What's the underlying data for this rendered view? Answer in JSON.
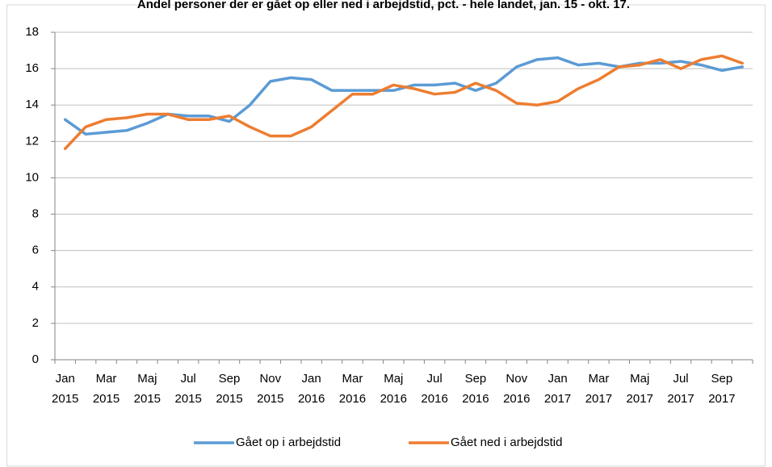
{
  "chart_data": {
    "type": "line",
    "title": "Andel personer der er gået op eller ned i arbejdstid, pct. - hele landet, jan. 15 - okt. 17.",
    "categories": [
      "Jan 2015",
      null,
      "Mar 2015",
      null,
      "Maj 2015",
      null,
      "Jul 2015",
      null,
      "Sep 2015",
      null,
      "Nov 2015",
      null,
      "Jan 2016",
      null,
      "Mar 2016",
      null,
      "Maj 2016",
      null,
      "Jul 2016",
      null,
      "Sep 2016",
      null,
      "Nov 2016",
      null,
      "Jan 2017",
      null,
      "Mar 2017",
      null,
      "Maj 2017",
      null,
      "Jul 2017",
      null,
      "Sep 2017",
      null
    ],
    "series": [
      {
        "name": "Gået op i arbejdstid",
        "color": "#5b9bd5",
        "values": [
          13.2,
          12.4,
          12.5,
          12.6,
          13.0,
          13.5,
          13.4,
          13.4,
          13.1,
          14.0,
          15.3,
          15.5,
          15.4,
          14.8,
          14.8,
          14.8,
          14.8,
          15.1,
          15.1,
          15.2,
          14.8,
          15.2,
          16.1,
          16.5,
          16.6,
          16.2,
          16.3,
          16.1,
          16.3,
          16.3,
          16.4,
          16.2,
          15.9,
          16.1
        ]
      },
      {
        "name": "Gået ned i arbejdstid",
        "color": "#ed7d31",
        "values": [
          11.6,
          12.8,
          13.2,
          13.3,
          13.5,
          13.5,
          13.2,
          13.2,
          13.4,
          12.8,
          12.3,
          12.3,
          12.8,
          13.7,
          14.6,
          14.6,
          15.1,
          14.9,
          14.6,
          14.7,
          15.2,
          14.8,
          14.1,
          14.0,
          14.2,
          14.9,
          15.4,
          16.1,
          16.2,
          16.5,
          16.0,
          16.5,
          16.7,
          16.3
        ]
      }
    ],
    "ylim": [
      0,
      18
    ],
    "yticks": [
      0,
      2,
      4,
      6,
      8,
      10,
      12,
      14,
      16,
      18
    ],
    "grid": true,
    "legend": "bottom"
  }
}
